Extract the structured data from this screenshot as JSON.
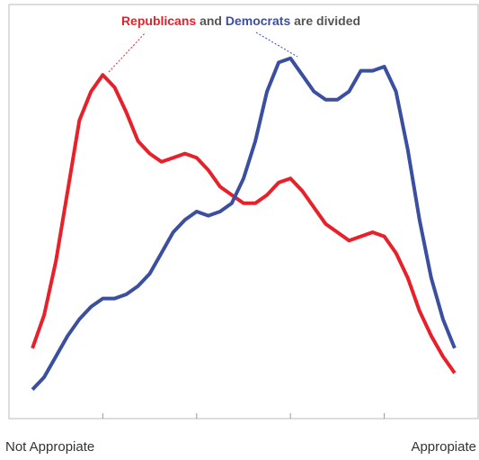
{
  "chart_data": {
    "type": "line",
    "annotation": {
      "parts": [
        {
          "text": "Republicans",
          "color": "#e8202a"
        },
        {
          "text": "and",
          "color": "#555555"
        },
        {
          "text": "Democrats",
          "color": "#3b4fa0"
        },
        {
          "text": "are divided",
          "color": "#555555"
        }
      ]
    },
    "x_end_labels": [
      "Not Appropiate",
      "Appropiate"
    ],
    "x": [
      0.5,
      0.75,
      1,
      1.25,
      1.5,
      1.75,
      2,
      2.25,
      2.5,
      2.75,
      3,
      3.25,
      3.5,
      3.75,
      4,
      4.25,
      4.5,
      4.75,
      5,
      5.25,
      5.5,
      5.75,
      6,
      6.25,
      6.5,
      6.75,
      7,
      7.25,
      7.5,
      7.75,
      8,
      8.25,
      8.5,
      8.75,
      9,
      9.25,
      9.5
    ],
    "series": [
      {
        "name": "Republicans",
        "color": "#e8202a",
        "values": [
          17,
          25,
          38,
          55,
          72,
          79,
          83,
          80,
          74,
          67,
          64,
          62,
          63,
          64,
          63,
          60,
          56,
          54,
          52,
          52,
          54,
          57,
          58,
          55,
          51,
          47,
          45,
          43,
          44,
          45,
          44,
          40,
          34,
          26,
          20,
          15,
          11
        ]
      },
      {
        "name": "Democrats",
        "color": "#3b4fa0",
        "values": [
          7,
          10,
          15,
          20,
          24,
          27,
          29,
          29,
          30,
          32,
          35,
          40,
          45,
          48,
          50,
          49,
          50,
          52,
          58,
          67,
          79,
          86,
          87,
          83,
          79,
          77,
          77,
          79,
          84,
          84,
          85,
          79,
          65,
          48,
          34,
          24,
          17
        ]
      }
    ],
    "xlim": [
      0,
      10
    ],
    "xticks": [
      2,
      4,
      6,
      8
    ],
    "ylim": [
      0,
      100
    ]
  }
}
